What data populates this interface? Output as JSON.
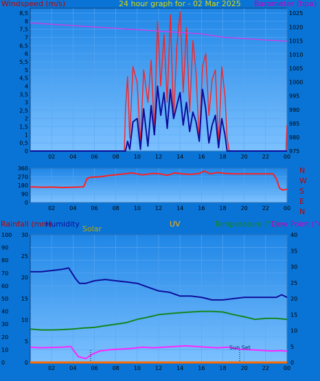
{
  "header": {
    "title": "24 hour graph for - 02 Mar 2025",
    "left_label": "Windspeed (m/s)",
    "right_label": "Barometer (hpa)"
  },
  "colors": {
    "background": "#0a74d6",
    "plot_top": "#1f86e6",
    "plot_bottom": "#7cc1ff",
    "grid": "#5aa7f2",
    "gust": "#ff1f1f",
    "wind": "#0d0d9a",
    "barometer": "#d23be6",
    "direction": "#ff1f1f",
    "humidity": "#0d0d9a",
    "temperature": "#12861c",
    "dewpoint": "#ff25ff",
    "rainfall": "#ff6a00",
    "solar": "#b8a600",
    "uv": "#ffb000",
    "title_color": "#d8d800",
    "label_red": "#c00000",
    "label_magenta": "#c000c0"
  },
  "chart_data": [
    {
      "type": "line",
      "panel": "wind-pressure",
      "title": "24 hour graph for - 02 Mar 2025",
      "xticks": [
        "02",
        "04",
        "06",
        "08",
        "10",
        "12",
        "14",
        "16",
        "18",
        "20",
        "22",
        "00"
      ],
      "x_range": [
        0,
        24
      ],
      "ylabel_left": "Windspeed (m/s)",
      "ylabel_right": "Barometer (hpa)",
      "yticks_left": [
        "0",
        "0,5",
        "1",
        "1,5",
        "2",
        "2,5",
        "3",
        "3,5",
        "4",
        "4,5",
        "5",
        "5,5",
        "6",
        "6,5",
        "7",
        "7,5",
        "8",
        "8,5"
      ],
      "yticks_right": [
        "975",
        "980",
        "985",
        "990",
        "995",
        "1000",
        "1005",
        "1010",
        "1015",
        "1020",
        "1025"
      ],
      "ylim_left": [
        0,
        8.8
      ],
      "ylim_right": [
        975,
        1026.8
      ],
      "series": [
        {
          "key": "gust",
          "axis": "left",
          "x": [
            0,
            8.8,
            8.9,
            9.1,
            9.3,
            9.6,
            10.0,
            10.3,
            10.6,
            11.0,
            11.3,
            11.6,
            11.9,
            12.2,
            12.5,
            12.8,
            13.1,
            13.4,
            13.7,
            14.0,
            14.3,
            14.6,
            14.9,
            15.2,
            15.5,
            15.8,
            16.1,
            16.4,
            16.7,
            17.0,
            17.3,
            17.6,
            17.9,
            18.2,
            18.4,
            18.6,
            23.9,
            24.0
          ],
          "values": [
            0,
            0,
            2.6,
            4.6,
            0.8,
            5.2,
            4.2,
            0.4,
            5.0,
            3.0,
            5.6,
            1.2,
            8.0,
            4.0,
            7.2,
            3.0,
            8.4,
            2.0,
            6.4,
            8.6,
            3.6,
            7.6,
            2.4,
            6.8,
            4.8,
            0.6,
            5.2,
            6.0,
            2.2,
            4.4,
            5.0,
            0.4,
            5.2,
            3.4,
            0.8,
            0,
            0,
            1.6
          ]
        },
        {
          "key": "wind",
          "axis": "left",
          "x": [
            0,
            8.9,
            9.1,
            9.3,
            9.6,
            10.0,
            10.3,
            10.6,
            11.0,
            11.3,
            11.6,
            11.9,
            12.2,
            12.5,
            12.8,
            13.1,
            13.4,
            13.7,
            14.0,
            14.3,
            14.6,
            14.9,
            15.2,
            15.5,
            15.8,
            16.1,
            16.4,
            16.7,
            17.0,
            17.3,
            17.6,
            17.9,
            18.2,
            18.4,
            24.0
          ],
          "values": [
            0,
            0,
            0.6,
            0.1,
            1.8,
            2.0,
            0.1,
            2.6,
            0.3,
            2.8,
            1.0,
            4.0,
            2.2,
            3.6,
            1.4,
            3.8,
            2.0,
            2.8,
            3.6,
            1.6,
            3.0,
            1.2,
            2.4,
            1.8,
            0.6,
            3.8,
            2.6,
            0.5,
            1.6,
            2.2,
            0.2,
            2.0,
            1.0,
            0,
            0
          ]
        },
        {
          "key": "barometer",
          "axis": "right",
          "x": [
            0,
            2,
            4,
            6,
            8,
            10,
            12,
            14,
            16,
            18,
            20,
            22,
            24
          ],
          "values": [
            1021.5,
            1021.0,
            1020.5,
            1020.0,
            1019.5,
            1019.0,
            1018.5,
            1018.0,
            1017.5,
            1016.3,
            1015.8,
            1015.3,
            1014.8
          ]
        }
      ]
    },
    {
      "type": "line",
      "panel": "wind-direction",
      "xticks": [
        "02",
        "04",
        "06",
        "08",
        "10",
        "12",
        "14",
        "16",
        "18",
        "20",
        "22",
        "00"
      ],
      "x_range": [
        0,
        24
      ],
      "yticks_left": [
        "0",
        "90",
        "180",
        "270",
        "360"
      ],
      "ylim": [
        0,
        360
      ],
      "compass": [
        "N",
        "W",
        "S",
        "E",
        "N"
      ],
      "series": [
        {
          "key": "direction",
          "x": [
            0,
            1,
            2,
            3,
            4,
            5,
            5.3,
            5.6,
            6.5,
            7.5,
            8.3,
            8.8,
            9.5,
            10.5,
            11.5,
            12.2,
            12.8,
            13.5,
            14.2,
            15,
            15.8,
            16.3,
            16.8,
            17.5,
            18.2,
            19,
            20,
            21,
            22,
            22.7,
            23,
            23.3,
            23.6,
            24
          ],
          "values": [
            165,
            160,
            162,
            158,
            160,
            165,
            250,
            265,
            270,
            285,
            295,
            300,
            310,
            290,
            305,
            300,
            285,
            310,
            300,
            295,
            305,
            330,
            300,
            315,
            305,
            300,
            300,
            300,
            300,
            300,
            250,
            150,
            130,
            140
          ]
        }
      ]
    },
    {
      "type": "line",
      "panel": "temperature-humidity",
      "xticks": [
        "02",
        "04",
        "06",
        "08",
        "10",
        "12",
        "14",
        "16",
        "18",
        "20",
        "22",
        "00"
      ],
      "x_range": [
        0,
        24
      ],
      "labels": {
        "rainfall": "Rainfall (mm)",
        "humidity": "Humidity",
        "solar": "Solar",
        "uv": "UV",
        "temperature": "Temperature (°C)",
        "dewpoint": "Dew Point (°C)"
      },
      "yticks_humidity": [
        "0",
        "10",
        "20",
        "30",
        "40",
        "50",
        "60",
        "70",
        "80",
        "90",
        "100"
      ],
      "yticks_rain": [
        "0",
        "5",
        "10",
        "15",
        "20",
        "25",
        "30"
      ],
      "yticks_temp": [
        "0",
        "5",
        "10",
        "15",
        "20",
        "25",
        "30",
        "35",
        "40"
      ],
      "ylim_humidity": [
        0,
        100
      ],
      "ylim_temp": [
        0,
        40
      ],
      "annotation": "Sun Set",
      "series": [
        {
          "key": "humidity",
          "axis": "humidity",
          "x": [
            0,
            1,
            2,
            3,
            3.6,
            4.2,
            4.6,
            5.2,
            6,
            7,
            8,
            9,
            10,
            11,
            12,
            13,
            14,
            15,
            16,
            17,
            18,
            19,
            20,
            21,
            22,
            23,
            23.5,
            24
          ],
          "values": [
            71,
            71,
            72,
            73,
            74,
            66,
            62,
            62,
            64,
            65,
            64,
            63,
            62,
            59,
            56,
            55,
            52,
            52,
            51,
            49,
            49,
            50,
            51,
            51,
            51,
            51,
            53,
            51
          ]
        },
        {
          "key": "temperature",
          "axis": "temp",
          "x": [
            0,
            1,
            2,
            3,
            4,
            5,
            6,
            7,
            8,
            9,
            10,
            11,
            12,
            13,
            14,
            15,
            16,
            17,
            18,
            19,
            20,
            21,
            22,
            23,
            24
          ],
          "values": [
            10.5,
            10.2,
            10.2,
            10.3,
            10.5,
            10.8,
            11.0,
            11.5,
            12.0,
            12.5,
            13.5,
            14.2,
            15.0,
            15.3,
            15.6,
            15.8,
            16.0,
            16.0,
            15.8,
            15.0,
            14.3,
            13.5,
            13.8,
            13.8,
            13.5
          ]
        },
        {
          "key": "dewpoint",
          "axis": "temp",
          "x": [
            0,
            1,
            2,
            3,
            3.8,
            4.5,
            5.2,
            5.8,
            6.5,
            7.5,
            8.5,
            9.5,
            10.5,
            11.5,
            12.5,
            13.5,
            14.5,
            15.5,
            16.5,
            17.5,
            18.5,
            19.5,
            20.5,
            21.5,
            22.5,
            23.5,
            24
          ],
          "values": [
            4.8,
            4.6,
            4.7,
            4.8,
            5.0,
            1.8,
            1.2,
            2.6,
            3.6,
            4.0,
            4.2,
            4.4,
            4.8,
            4.6,
            4.8,
            5.0,
            5.2,
            5.0,
            4.8,
            4.6,
            4.8,
            4.2,
            4.0,
            3.8,
            3.6,
            3.7,
            3.5
          ]
        },
        {
          "key": "rainfall",
          "axis": "rain",
          "x": [
            0,
            24
          ],
          "values": [
            0,
            0
          ]
        }
      ]
    }
  ]
}
